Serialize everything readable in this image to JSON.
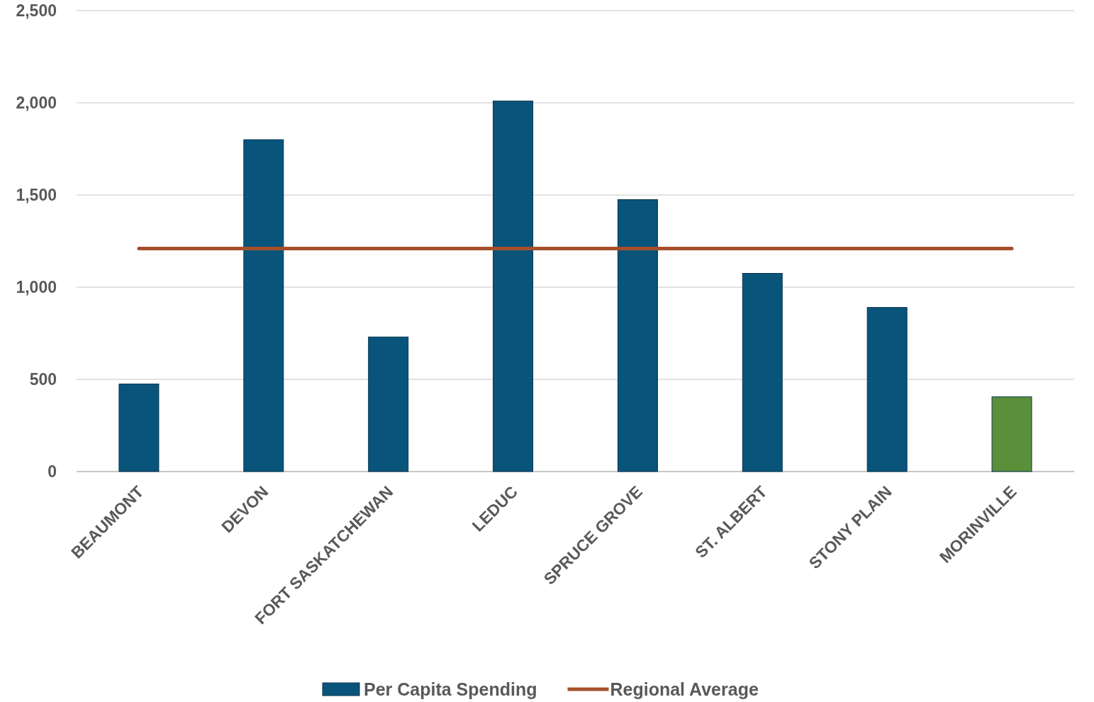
{
  "chart_data": {
    "type": "bar",
    "categories": [
      "BEAUMONT",
      "DEVON",
      "FORT SASKATCHEWAN",
      "LEDUC",
      "SPRUCE GROVE",
      "ST. ALBERT",
      "STONY PLAIN",
      "MORINVILLE"
    ],
    "series": [
      {
        "name": "Per Capita Spending",
        "color": "#08547a",
        "colors": [
          "#08547a",
          "#08547a",
          "#08547a",
          "#08547a",
          "#08547a",
          "#08547a",
          "#08547a",
          "#5b8f3a"
        ],
        "values": [
          475,
          1800,
          730,
          2010,
          1475,
          1075,
          890,
          405
        ]
      },
      {
        "name": "Regional Average",
        "type": "line",
        "color": "#a5502a",
        "values": [
          1210,
          1210,
          1210,
          1210,
          1210,
          1210,
          1210,
          1210
        ]
      }
    ],
    "ylim": [
      0,
      2500
    ],
    "yticks": [
      {
        "value": 0,
        "label": "0"
      },
      {
        "value": 500,
        "label": "500"
      },
      {
        "value": 1000,
        "label": "1,000"
      },
      {
        "value": 1500,
        "label": "1,500"
      },
      {
        "value": 2000,
        "label": "2,000"
      },
      {
        "value": 2500,
        "label": "2,500"
      }
    ],
    "grid": "y",
    "legend": "bottom"
  }
}
